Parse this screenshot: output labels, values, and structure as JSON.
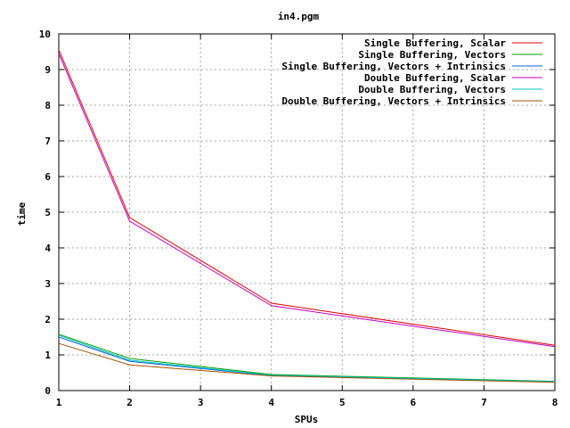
{
  "chart_data": {
    "type": "line",
    "title": "in4.pgm",
    "xlabel": "SPUs",
    "ylabel": "time",
    "xlim": [
      1,
      8
    ],
    "ylim": [
      0,
      10
    ],
    "xticks": [
      "1",
      "2",
      "3",
      "4",
      "5",
      "6",
      "7",
      "8"
    ],
    "yticks": [
      "0",
      "1",
      "2",
      "3",
      "4",
      "5",
      "6",
      "7",
      "8",
      "9",
      "10"
    ],
    "grid": true,
    "legend_position": "top-right",
    "x": [
      1,
      2,
      4,
      8
    ],
    "series": [
      {
        "name": "Single Buffering, Scalar",
        "color": "#e00000",
        "values": [
          9.55,
          4.85,
          2.45,
          1.27
        ]
      },
      {
        "name": "Single Buffering, Vectors",
        "color": "#00a000",
        "values": [
          1.58,
          0.9,
          0.45,
          0.26
        ]
      },
      {
        "name": "Single Buffering, Vectors + Intrinsics",
        "color": "#1060d0",
        "values": [
          1.5,
          0.82,
          0.42,
          0.24
        ]
      },
      {
        "name": "Double Buffering, Scalar",
        "color": "#c000c0",
        "values": [
          9.45,
          4.75,
          2.38,
          1.23
        ]
      },
      {
        "name": "Double Buffering, Vectors",
        "color": "#00c8c8",
        "values": [
          1.55,
          0.85,
          0.43,
          0.25
        ]
      },
      {
        "name": "Double Buffering, Vectors + Intrinsics",
        "color": "#a05000",
        "values": [
          1.32,
          0.72,
          0.41,
          0.23
        ]
      }
    ]
  }
}
